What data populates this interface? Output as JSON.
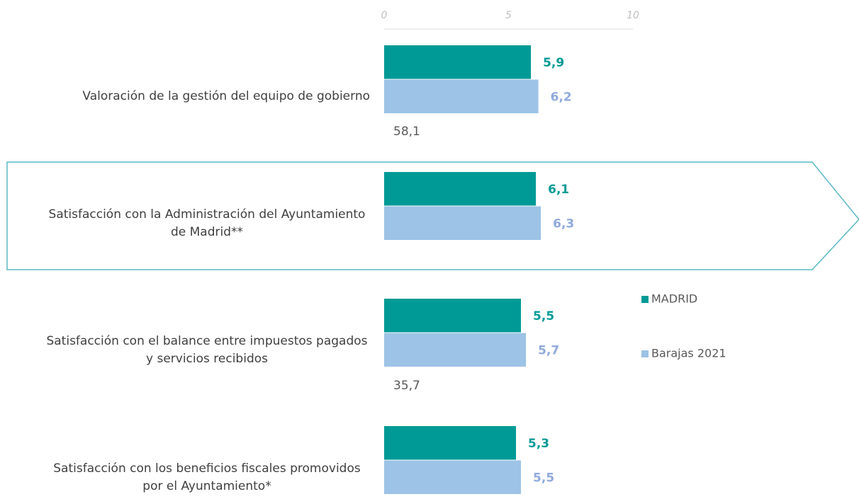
{
  "chart_data": {
    "type": "bar",
    "orientation": "horizontal",
    "categories": [
      "Valoración de la gestión del equipo de gobierno",
      "Satisfacción con la Administración del Ayuntamiento de Madrid**",
      "Satisfacción con el balance entre impuestos pagados y servicios recibidos",
      "Satisfacción con los beneficios fiscales promovidos por el Ayuntamiento*"
    ],
    "series": [
      {
        "name": "MADRID",
        "color": "#009a96",
        "label_color": "#009a96",
        "values": [
          5.9,
          6.1,
          5.5,
          5.3
        ],
        "value_labels": [
          "5,9",
          "6,1",
          "5,5",
          "5,3"
        ]
      },
      {
        "name": "Barajas 2021",
        "color": "#9dc3e6",
        "label_color": "#8faadc",
        "values": [
          6.2,
          6.3,
          5.7,
          5.5
        ],
        "value_labels": [
          "6,2",
          "6,3",
          "5,7",
          "5,5"
        ]
      }
    ],
    "xlim": [
      0,
      10
    ],
    "xticks": [
      0,
      5,
      10
    ],
    "annotations": [
      "58,1",
      "35,7"
    ]
  }
}
